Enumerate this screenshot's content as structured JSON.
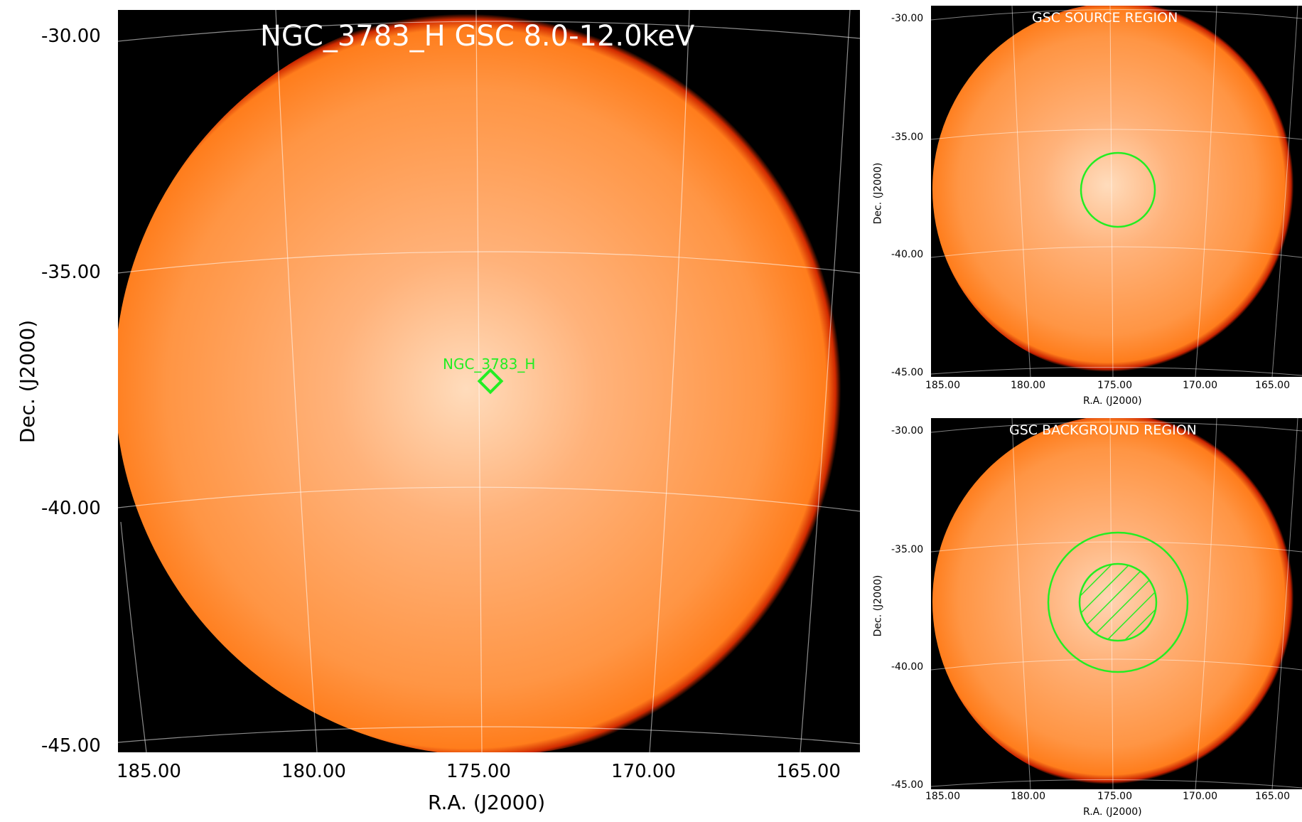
{
  "main_panel": {
    "title": "NGC_3783_H GSC 8.0-12.0keV",
    "source_label": "NGC_3783_H",
    "x_axis_label": "R.A. (J2000)",
    "y_axis_label": "Dec. (J2000)",
    "x_ticks": [
      "185.00",
      "180.00",
      "175.00",
      "170.00",
      "165.00"
    ],
    "y_ticks": [
      "-30.00",
      "-35.00",
      "-40.00",
      "-45.00"
    ]
  },
  "source_panel": {
    "title": "GSC SOURCE REGION",
    "x_axis_label": "R.A. (J2000)",
    "y_axis_label": "Dec. (J2000)",
    "x_ticks": [
      "185.00",
      "180.00",
      "175.00",
      "170.00",
      "165.00"
    ],
    "y_ticks": [
      "-30.00",
      "-35.00",
      "-40.00",
      "-45.00"
    ]
  },
  "background_panel": {
    "title": "GSC BACKGROUND REGION",
    "x_axis_label": "R.A. (J2000)",
    "y_axis_label": "Dec. (J2000)",
    "x_ticks": [
      "185.00",
      "180.00",
      "175.00",
      "170.00",
      "165.00"
    ],
    "y_ticks": [
      "-30.00",
      "-35.00",
      "-40.00",
      "-45.00"
    ]
  },
  "colors": {
    "disk_center": "#ffe0c2",
    "disk_mid": "#ffa560",
    "disk_edge": "#ff7f1e",
    "rim": "#c01800",
    "region": "#22ee22",
    "grid": "#ffffff"
  }
}
